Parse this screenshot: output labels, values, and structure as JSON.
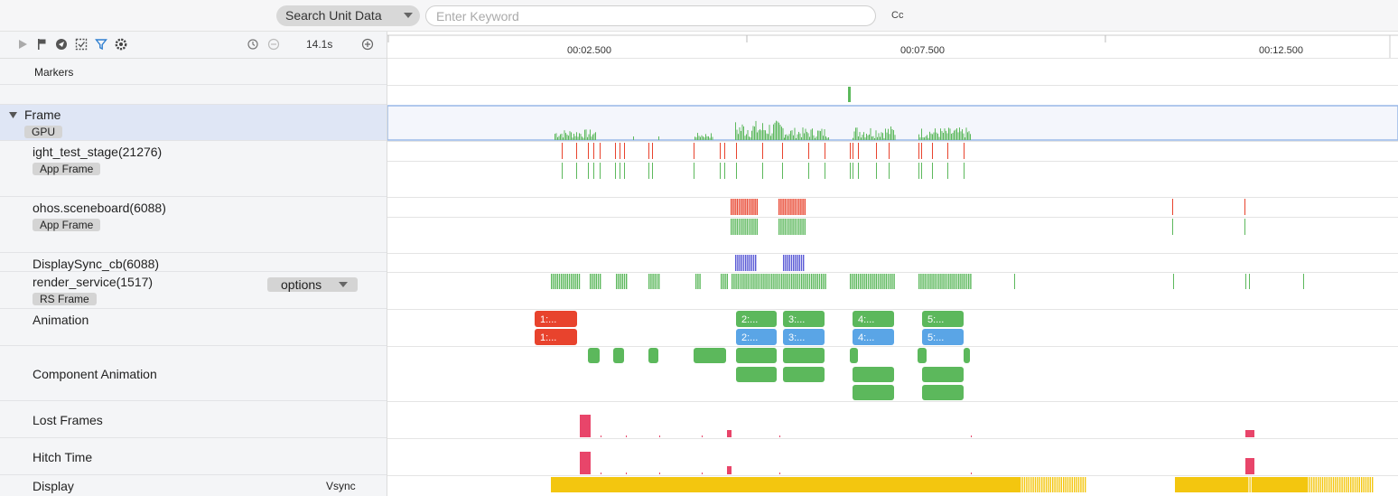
{
  "search": {
    "unit_label": "Search Unit Data",
    "placeholder": "Enter Keyword",
    "case_label": "Cc"
  },
  "toolbar": {
    "zoom_label": "14.1s",
    "icons": [
      "play-icon",
      "flag-icon",
      "pin-icon",
      "selection-icon",
      "filter-icon",
      "settings-icon",
      "clock-icon",
      "zoom-out-icon",
      "zoom-in-icon"
    ]
  },
  "timeline": {
    "ticks": [
      "00:02.500",
      "00:07.500",
      "00:12.500"
    ]
  },
  "tracks": {
    "markers": {
      "label": "Markers"
    },
    "frame": {
      "label": "Frame",
      "tag": "GPU"
    },
    "light_test": {
      "label": "ight_test_stage(21276)",
      "tag": "App Frame"
    },
    "sceneboard": {
      "label": "ohos.sceneboard(6088)",
      "tag": "App Frame"
    },
    "displaysync": {
      "label": "DisplaySync_cb(6088)"
    },
    "render_service": {
      "label": "render_service(1517)",
      "tag": "RS Frame",
      "options_label": "options"
    },
    "animation": {
      "label": "Animation"
    },
    "component_animation": {
      "label": "Component Animation"
    },
    "lost_frames": {
      "label": "Lost Frames"
    },
    "hitch_time": {
      "label": "Hitch Time"
    },
    "display": {
      "label": "Display",
      "vsync_label": "Vsync"
    }
  },
  "animations": {
    "row1": [
      {
        "label": "1:...",
        "color": "#e8432d"
      },
      {
        "label": "2:...",
        "color": "#5cb85c"
      },
      {
        "label": "3:...",
        "color": "#5cb85c"
      },
      {
        "label": "4:...",
        "color": "#5cb85c"
      },
      {
        "label": "5:...",
        "color": "#5cb85c"
      }
    ],
    "row2": [
      {
        "label": "1:...",
        "color": "#e8432d"
      },
      {
        "label": "2:...",
        "color": "#5aa5e6"
      },
      {
        "label": "3:...",
        "color": "#5aa5e6"
      },
      {
        "label": "4:...",
        "color": "#5aa5e6"
      },
      {
        "label": "5:...",
        "color": "#5aa5e6"
      }
    ]
  },
  "colors": {
    "green": "#5cb85c",
    "red": "#e8432d",
    "blue": "#5b5bd6",
    "pink": "#e8456a",
    "yellow": "#f3c60f",
    "frame_highlight": "#dfe6f5"
  }
}
